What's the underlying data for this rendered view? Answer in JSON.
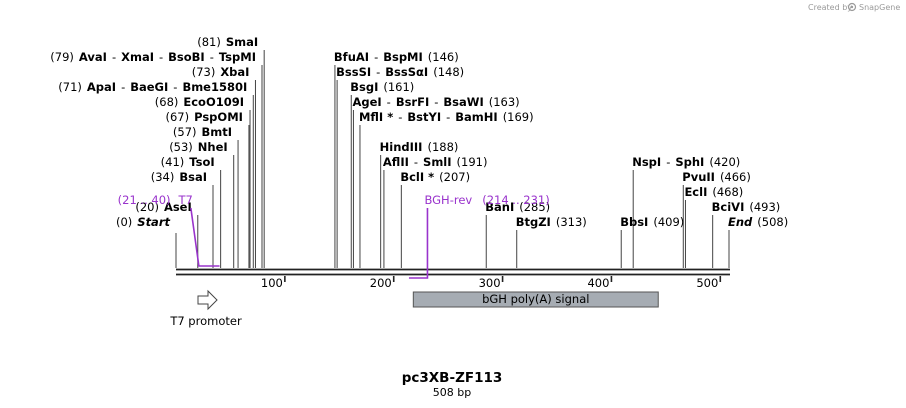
{
  "credit": "Created by",
  "brand": "SnapGene",
  "title": "pc3XB-ZF113",
  "subtitle": "508 bp",
  "sequence_length": 508,
  "ticks": [
    {
      "pos": 100,
      "label": "100"
    },
    {
      "pos": 200,
      "label": "200"
    },
    {
      "pos": 300,
      "label": "300"
    },
    {
      "pos": 400,
      "label": "400"
    },
    {
      "pos": 500,
      "label": "500"
    }
  ],
  "sites": [
    {
      "id": "smai",
      "pos": 81,
      "row": 0,
      "parts": [
        {
          "t": "(81)",
          "c": "lbl"
        },
        {
          "t": "SmaI",
          "c": "enz"
        }
      ]
    },
    {
      "id": "avai",
      "pos": 79,
      "row": 1,
      "parts": [
        {
          "t": "(79)",
          "c": "lbl"
        },
        {
          "t": "AvaI",
          "c": "enz"
        },
        {
          "t": "-",
          "c": "lbl"
        },
        {
          "t": "XmaI",
          "c": "enz"
        },
        {
          "t": "-",
          "c": "lbl"
        },
        {
          "t": "BsoBI",
          "c": "enz"
        },
        {
          "t": "-",
          "c": "lbl"
        },
        {
          "t": "TspMI",
          "c": "enz"
        }
      ]
    },
    {
      "id": "xbai",
      "pos": 73,
      "row": 2,
      "parts": [
        {
          "t": "(73)",
          "c": "lbl"
        },
        {
          "t": "XbaI",
          "c": "enz"
        }
      ]
    },
    {
      "id": "apai",
      "pos": 71,
      "row": 3,
      "parts": [
        {
          "t": "(71)",
          "c": "lbl"
        },
        {
          "t": "ApaI",
          "c": "enz"
        },
        {
          "t": "-",
          "c": "lbl"
        },
        {
          "t": "BaeGI",
          "c": "enz"
        },
        {
          "t": "-",
          "c": "lbl"
        },
        {
          "t": "Bme1580I",
          "c": "enz"
        }
      ]
    },
    {
      "id": "ecoo109i",
      "pos": 68,
      "row": 4,
      "parts": [
        {
          "t": "(68)",
          "c": "lbl"
        },
        {
          "t": "EcoO109I",
          "c": "enz"
        }
      ]
    },
    {
      "id": "psp0mi",
      "pos": 67,
      "row": 5,
      "parts": [
        {
          "t": "(67)",
          "c": "lbl"
        },
        {
          "t": "PspOMI",
          "c": "enz"
        }
      ]
    },
    {
      "id": "bmti",
      "pos": 57,
      "row": 6,
      "parts": [
        {
          "t": "(57)",
          "c": "lbl"
        },
        {
          "t": "BmtI",
          "c": "enz"
        }
      ]
    },
    {
      "id": "nhei",
      "pos": 53,
      "row": 7,
      "parts": [
        {
          "t": "(53)",
          "c": "lbl"
        },
        {
          "t": "NheI",
          "c": "enz"
        }
      ]
    },
    {
      "id": "tsoi",
      "pos": 41,
      "row": 8,
      "parts": [
        {
          "t": "(41)",
          "c": "lbl"
        },
        {
          "t": "TsoI",
          "c": "enz"
        }
      ]
    },
    {
      "id": "bsai",
      "pos": 34,
      "row": 9,
      "parts": [
        {
          "t": "(34)",
          "c": "lbl"
        },
        {
          "t": "BsaI",
          "c": "enz"
        }
      ]
    },
    {
      "id": "asei",
      "pos": 20,
      "row": 11,
      "parts": [
        {
          "t": "(20)",
          "c": "lbl"
        },
        {
          "t": "AseI",
          "c": "enz"
        }
      ]
    },
    {
      "id": "start",
      "pos": 0,
      "row": 12,
      "parts": [
        {
          "t": "(0)",
          "c": "lbl"
        },
        {
          "t": "Start",
          "c": "it"
        }
      ]
    },
    {
      "id": "bfuai",
      "pos": 146,
      "row": 1,
      "parts": [
        {
          "t": "BfuAI",
          "c": "enz"
        },
        {
          "t": "-",
          "c": "lbl"
        },
        {
          "t": "BspMI",
          "c": "enz"
        },
        {
          "t": "(146)",
          "c": "lbl"
        }
      ]
    },
    {
      "id": "bsssi",
      "pos": 148,
      "row": 2,
      "parts": [
        {
          "t": "BssSI",
          "c": "enz"
        },
        {
          "t": "-",
          "c": "lbl"
        },
        {
          "t": "BssSαI",
          "c": "enz"
        },
        {
          "t": "(148)",
          "c": "lbl"
        }
      ]
    },
    {
      "id": "bsgi",
      "pos": 161,
      "row": 3,
      "parts": [
        {
          "t": "BsgI",
          "c": "enz"
        },
        {
          "t": "(161)",
          "c": "lbl"
        }
      ]
    },
    {
      "id": "agei",
      "pos": 163,
      "row": 4,
      "parts": [
        {
          "t": "AgeI",
          "c": "enz"
        },
        {
          "t": "-",
          "c": "lbl"
        },
        {
          "t": "BsrFI",
          "c": "enz"
        },
        {
          "t": "-",
          "c": "lbl"
        },
        {
          "t": "BsaWI",
          "c": "enz"
        },
        {
          "t": "(163)",
          "c": "lbl"
        }
      ]
    },
    {
      "id": "mfli",
      "pos": 169,
      "row": 5,
      "parts": [
        {
          "t": "MflI *",
          "c": "enz"
        },
        {
          "t": "-",
          "c": "lbl"
        },
        {
          "t": "BstYI",
          "c": "enz"
        },
        {
          "t": "-",
          "c": "lbl"
        },
        {
          "t": "BamHI",
          "c": "enz"
        },
        {
          "t": "(169)",
          "c": "lbl"
        }
      ]
    },
    {
      "id": "hindiii",
      "pos": 188,
      "row": 7,
      "parts": [
        {
          "t": "HindIII",
          "c": "enz"
        },
        {
          "t": "(188)",
          "c": "lbl"
        }
      ]
    },
    {
      "id": "aflii",
      "pos": 191,
      "row": 8,
      "parts": [
        {
          "t": "AflII",
          "c": "enz"
        },
        {
          "t": "-",
          "c": "lbl"
        },
        {
          "t": "SmlI",
          "c": "enz"
        },
        {
          "t": "(191)",
          "c": "lbl"
        }
      ]
    },
    {
      "id": "bcli",
      "pos": 207,
      "row": 9,
      "parts": [
        {
          "t": "BclI *",
          "c": "enz"
        },
        {
          "t": "(207)",
          "c": "lbl"
        }
      ]
    },
    {
      "id": "bani",
      "pos": 285,
      "row": 11,
      "parts": [
        {
          "t": "BanI",
          "c": "enz"
        },
        {
          "t": "(285)",
          "c": "lbl"
        }
      ]
    },
    {
      "id": "btgzi",
      "pos": 313,
      "row": 12,
      "parts": [
        {
          "t": "BtgZI",
          "c": "enz"
        },
        {
          "t": "(313)",
          "c": "lbl"
        }
      ]
    },
    {
      "id": "nspi",
      "pos": 420,
      "row": 8,
      "parts": [
        {
          "t": "NspI",
          "c": "enz"
        },
        {
          "t": "-",
          "c": "lbl"
        },
        {
          "t": "SphI",
          "c": "enz"
        },
        {
          "t": "(420)",
          "c": "lbl"
        }
      ]
    },
    {
      "id": "pvuii",
      "pos": 466,
      "row": 9,
      "parts": [
        {
          "t": "PvuII",
          "c": "enz"
        },
        {
          "t": "(466)",
          "c": "lbl"
        }
      ]
    },
    {
      "id": "ecli",
      "pos": 468,
      "row": 10,
      "parts": [
        {
          "t": "EclI",
          "c": "enz"
        },
        {
          "t": "(468)",
          "c": "lbl"
        }
      ]
    },
    {
      "id": "bcivi",
      "pos": 493,
      "row": 11,
      "parts": [
        {
          "t": "BciVI",
          "c": "enz"
        },
        {
          "t": "(493)",
          "c": "lbl"
        }
      ]
    },
    {
      "id": "bbsi",
      "pos": 409,
      "row": 12,
      "parts": [
        {
          "t": "BbsI",
          "c": "enz"
        },
        {
          "t": "(409)",
          "c": "lbl"
        }
      ]
    },
    {
      "id": "end",
      "pos": 508,
      "row": 12,
      "parts": [
        {
          "t": "End",
          "c": "it"
        },
        {
          "t": "(508)",
          "c": "lbl"
        }
      ]
    }
  ],
  "primers": [
    {
      "id": "t7",
      "start": 21,
      "end": 40,
      "name": "T7",
      "range": "(21 .. 40)",
      "strand": "forward"
    },
    {
      "id": "bgh-rev",
      "start": 214,
      "end": 231,
      "name": "BGH-rev",
      "range": "(214 .. 231)",
      "strand": "reverse"
    }
  ],
  "features": [
    {
      "id": "t7-promoter",
      "start": 20,
      "end": 38,
      "label": "T7 promoter",
      "kind": "promoter"
    },
    {
      "id": "bgh-polya",
      "start": 218,
      "end": 443,
      "label": "bGH poly(A) signal",
      "kind": "polyA"
    }
  ],
  "colors": {
    "primer": "#9933cc",
    "feature_fill": "#a6acb3",
    "backbone": "#222222"
  }
}
